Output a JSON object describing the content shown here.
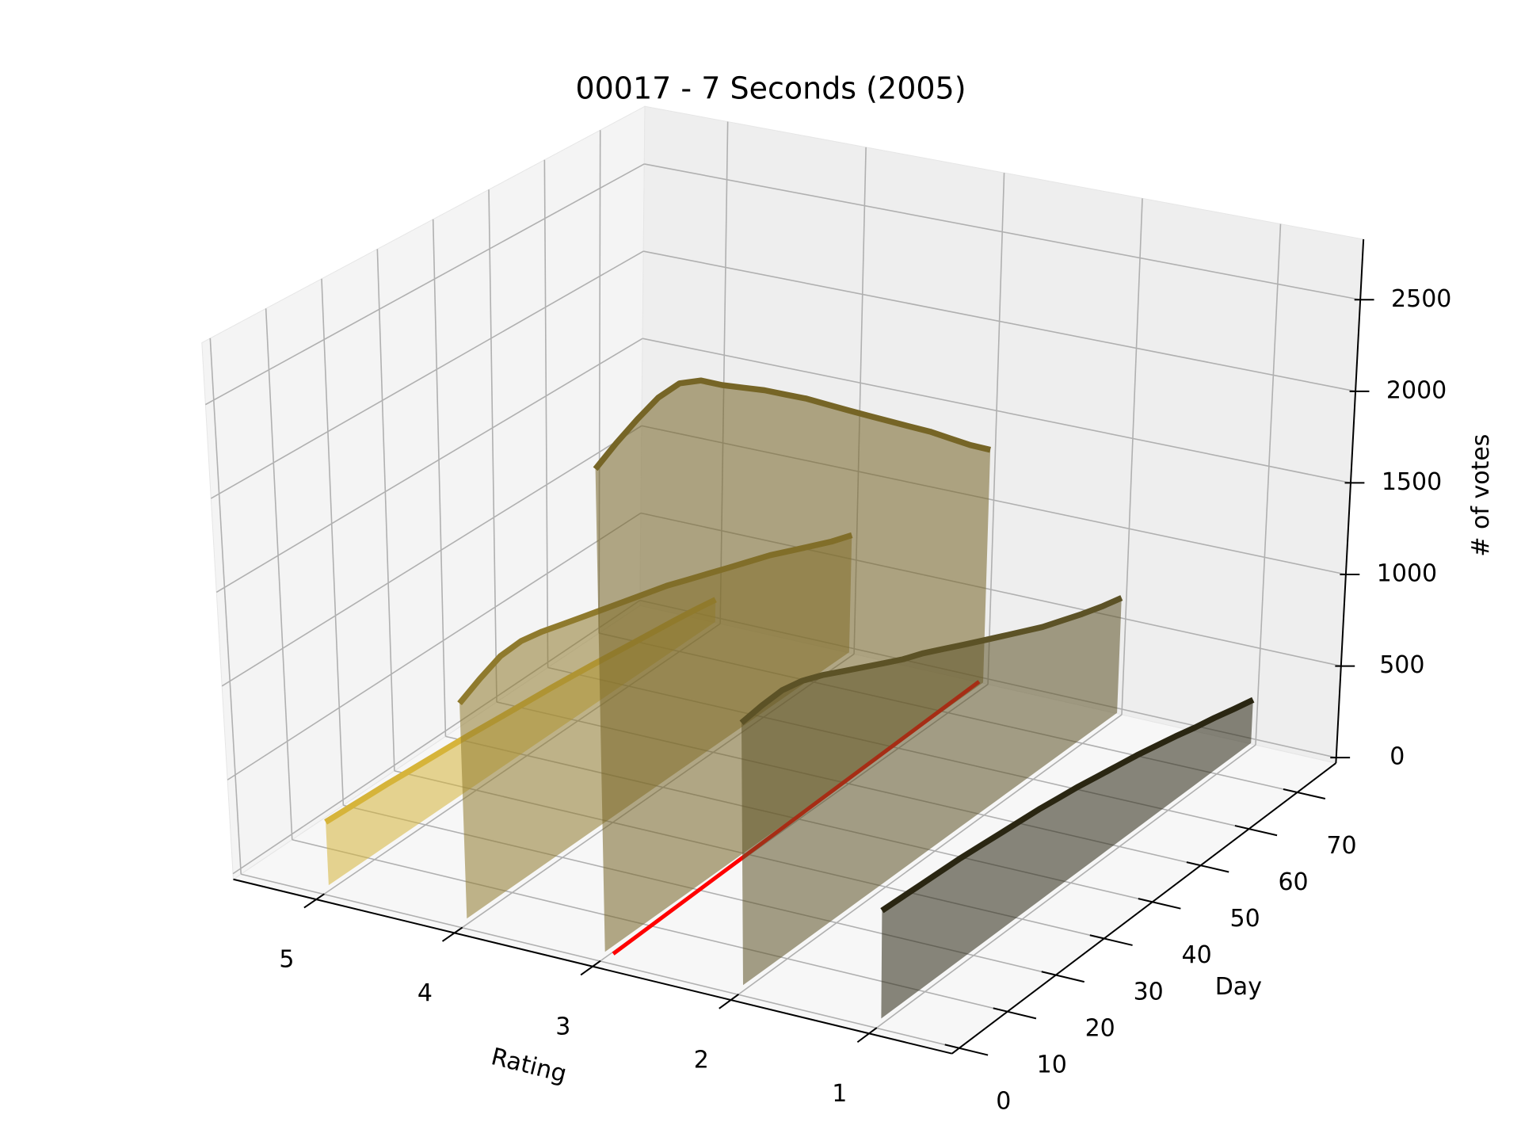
{
  "chart_data": {
    "type": "line3d",
    "title": "00017 - 7 Seconds (2005)",
    "xlabel": "Rating",
    "ylabel": "Day",
    "zlabel": "# of votes",
    "x": [
      1,
      5,
      9,
      13,
      17,
      21,
      25,
      29,
      33,
      37,
      41,
      45,
      49,
      53,
      57,
      61,
      65,
      69,
      73,
      77
    ],
    "series": [
      {
        "rating": 5,
        "color": "#d6b43a",
        "values": [
          335,
          330,
          325,
          320,
          312,
          305,
          298,
          290,
          280,
          270,
          260,
          250,
          238,
          225,
          210,
          195,
          180,
          165,
          148,
          127
        ]
      },
      {
        "rating": 4,
        "color": "#8f7a2d",
        "values": [
          1130,
          1190,
          1240,
          1250,
          1230,
          1200,
          1170,
          1140,
          1110,
          1080,
          1050,
          1010,
          970,
          930,
          890,
          850,
          800,
          750,
          700,
          660
        ]
      },
      {
        "rating": 3,
        "color": "#766526",
        "values": [
          2510,
          2580,
          2640,
          2690,
          2700,
          2650,
          2560,
          2480,
          2400,
          2310,
          2220,
          2120,
          2020,
          1920,
          1820,
          1720,
          1620,
          1510,
          1400,
          1300
        ]
      },
      {
        "rating": 2,
        "color": "#5c5226",
        "values": [
          1350,
          1370,
          1380,
          1360,
          1320,
          1270,
          1220,
          1170,
          1120,
          1080,
          1030,
          980,
          930,
          880,
          830,
          780,
          740,
          700,
          665,
          636
        ]
      },
      {
        "rating": 1,
        "color": "#2a2612",
        "values": [
          550,
          545,
          540,
          535,
          530,
          520,
          510,
          500,
          490,
          475,
          460,
          440,
          420,
          400,
          375,
          350,
          320,
          295,
          265,
          237
        ]
      }
    ],
    "reference_line": {
      "color": "#ff0000",
      "x": [
        1,
        77
      ],
      "rating": [
        2.94,
        3.03
      ]
    },
    "xlim": [
      5.6,
      0.4
    ],
    "xticks": [
      5,
      4,
      3,
      2,
      1
    ],
    "ylim": [
      -1.5,
      78
    ],
    "yticks": [
      0,
      10,
      20,
      30,
      40,
      50,
      60,
      70
    ],
    "zlim": [
      -30,
      2830
    ],
    "zticks": [
      0,
      500,
      1000,
      1500,
      2000,
      2500
    ],
    "grid": true
  }
}
